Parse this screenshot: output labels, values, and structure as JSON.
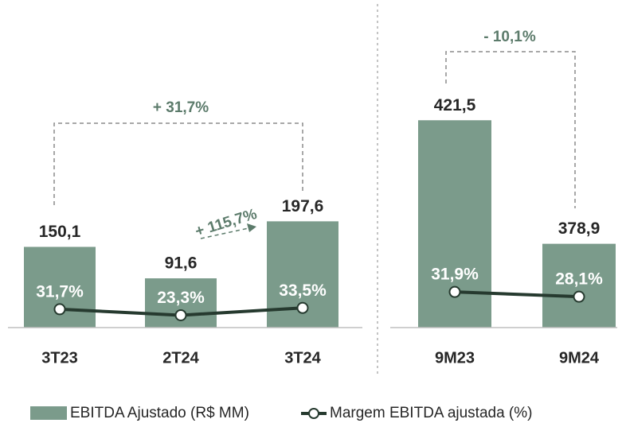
{
  "chart_data": [
    {
      "type": "bar",
      "categories": [
        "3T23",
        "2T24",
        "3T24"
      ],
      "series": [
        {
          "name": "EBITDA Ajustado (R$ MM)",
          "color": "#7b9b8b",
          "values": [
            150.1,
            91.6,
            197.6
          ],
          "value_labels": [
            "150,1",
            "91,6",
            "197,6"
          ]
        },
        {
          "name": "Margem EBITDA ajustada (%)",
          "type": "line",
          "axis": "y2",
          "color": "#263a2f",
          "values": [
            31.7,
            23.3,
            33.5
          ],
          "value_labels": [
            "31,7%",
            "23,3%",
            "33,5%"
          ]
        }
      ],
      "ylim": [
        0,
        550
      ],
      "y2lim": [
        6,
        420
      ],
      "annotations": [
        "+ 31,7%",
        "+ 115,7%"
      ]
    },
    {
      "type": "bar",
      "categories": [
        "9M23",
        "9M24"
      ],
      "series": [
        {
          "color": "#7b9b8b",
          "values": [
            421.5,
            378.9
          ],
          "value_labels": [
            "421,5",
            "378,9"
          ]
        },
        {
          "type": "line",
          "axis": "y2",
          "color": "#263a2f",
          "values": [
            31.9,
            28.1
          ],
          "value_labels": [
            "31,9%",
            "28,1%"
          ]
        }
      ],
      "ylim": [
        350,
        452
      ],
      "y2lim": [
        3.5,
        239
      ],
      "annotations": [
        "- 10,1%"
      ]
    }
  ]
}
